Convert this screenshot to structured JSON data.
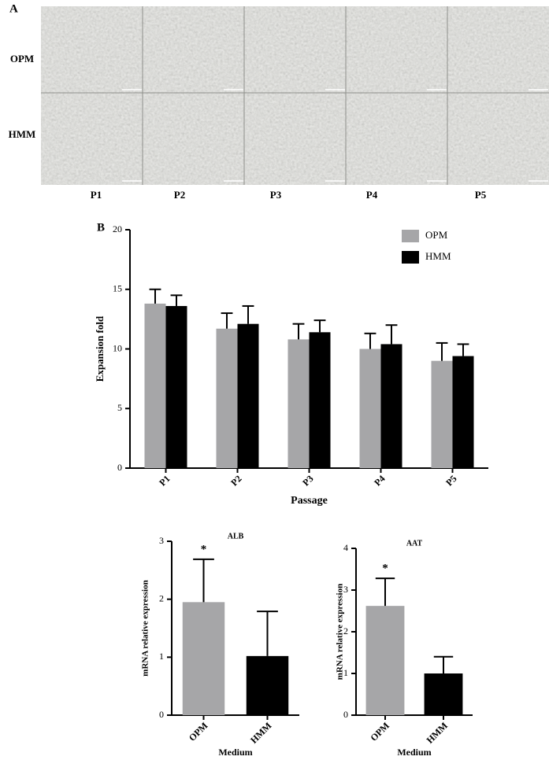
{
  "panel_a": {
    "label": "A",
    "rows": [
      "OPM",
      "HMM"
    ],
    "columns": [
      "P1",
      "P2",
      "P3",
      "P4",
      "P5"
    ]
  },
  "chart_data": [
    {
      "type": "bar",
      "panel_label": "B",
      "ylabel": "Expansion fold",
      "xlabel": "Passage",
      "categories": [
        "P1",
        "P2",
        "P3",
        "P4",
        "P5"
      ],
      "series": [
        {
          "name": "OPM",
          "color": "#a6a6a8",
          "values": [
            13.8,
            11.7,
            10.8,
            10.0,
            9.0
          ],
          "errors": [
            1.2,
            1.3,
            1.3,
            1.3,
            1.5
          ]
        },
        {
          "name": "HMM",
          "color": "#000000",
          "values": [
            13.6,
            12.1,
            11.4,
            10.4,
            9.4
          ],
          "errors": [
            0.9,
            1.5,
            1.0,
            1.6,
            1.0
          ]
        }
      ],
      "ylim": [
        0,
        20
      ],
      "yticks": [
        0,
        5,
        10,
        15,
        20
      ],
      "legend": "upper right"
    },
    {
      "type": "bar",
      "title": "ALB",
      "ylabel": "mRNA relative expression",
      "xlabel": "Medium",
      "categories": [
        "OPM",
        "HMM"
      ],
      "values": [
        1.95,
        1.02
      ],
      "errors": [
        0.74,
        0.77
      ],
      "colors": [
        "#a6a6a8",
        "#000000"
      ],
      "ylim": [
        0,
        3
      ],
      "yticks": [
        0,
        1,
        2,
        3
      ],
      "annotations": [
        {
          "text": "*",
          "x": "OPM"
        }
      ]
    },
    {
      "type": "bar",
      "title": "AAT",
      "ylabel": "mRNA relative expression",
      "xlabel": "Medium",
      "categories": [
        "OPM",
        "HMM"
      ],
      "values": [
        2.62,
        1.0
      ],
      "errors": [
        0.66,
        0.4
      ],
      "colors": [
        "#a6a6a8",
        "#000000"
      ],
      "ylim": [
        0,
        4
      ],
      "yticks": [
        0,
        1,
        2,
        3,
        4
      ],
      "annotations": [
        {
          "text": "*",
          "x": "OPM"
        }
      ]
    }
  ]
}
